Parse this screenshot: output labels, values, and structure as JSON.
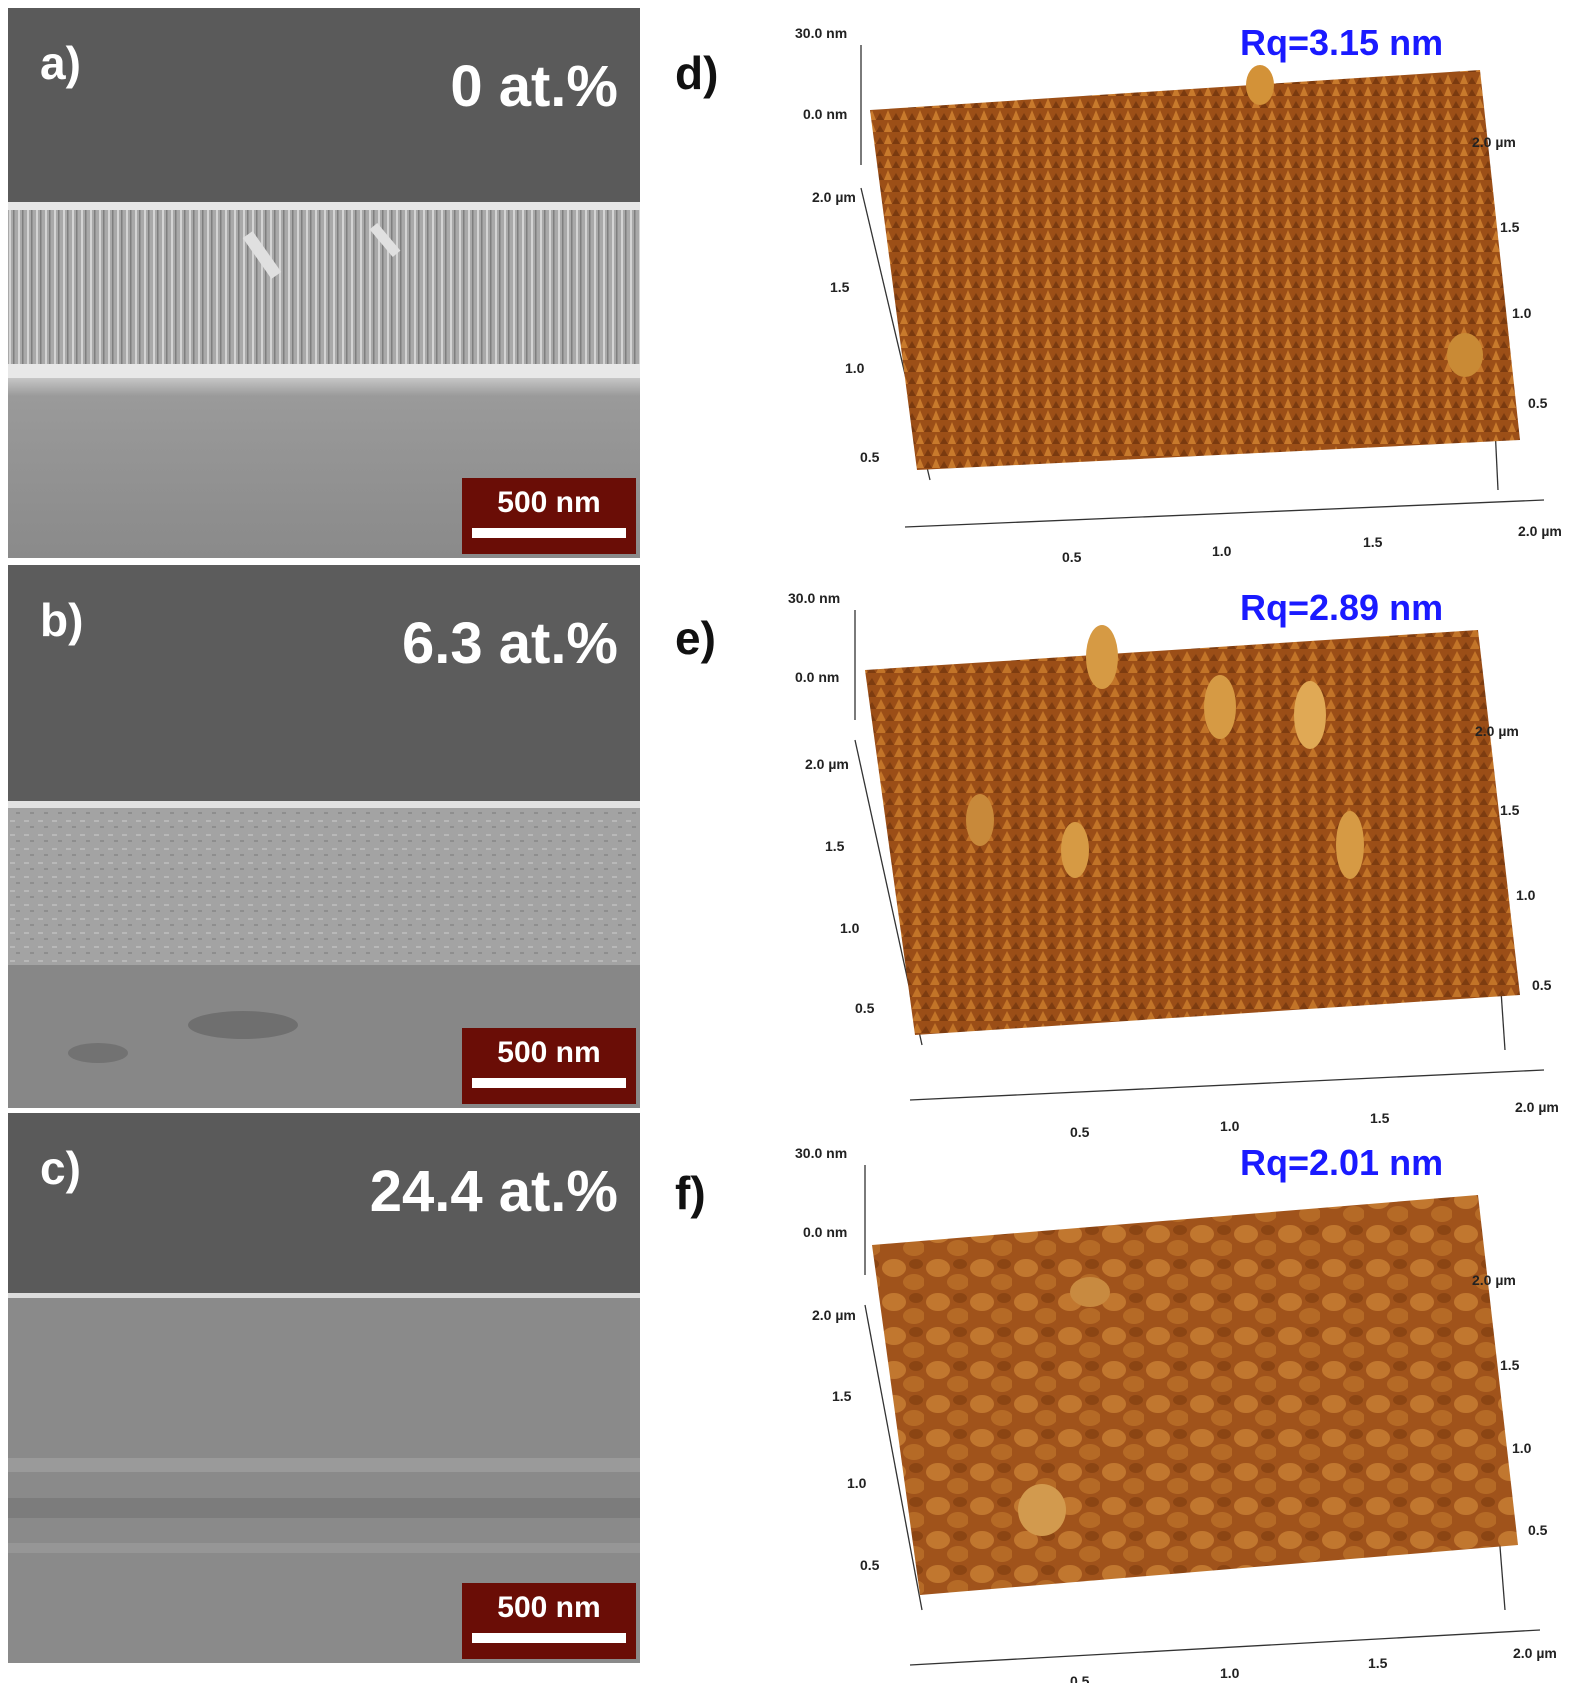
{
  "sem_panels": [
    {
      "id": "a",
      "letter": "a)",
      "concentration": "0 at.%",
      "scale_bar": "500 nm"
    },
    {
      "id": "b",
      "letter": "b)",
      "concentration": "6.3 at.%",
      "scale_bar": "500 nm"
    },
    {
      "id": "c",
      "letter": "c)",
      "concentration": "24.4 at.%",
      "scale_bar": "500 nm"
    }
  ],
  "afm_panels": [
    {
      "id": "d",
      "letter": "d)",
      "roughness": "Rq=3.15 nm"
    },
    {
      "id": "e",
      "letter": "e)",
      "roughness": "Rq=2.89 nm"
    },
    {
      "id": "f",
      "letter": "f)",
      "roughness": "Rq=2.01 nm"
    }
  ],
  "afm_axes": {
    "z_top": "30.0 nm",
    "z_zero": "0.0 nm",
    "left_ticks": [
      "2.0 µm",
      "1.5",
      "1.0",
      "0.5"
    ],
    "right_ticks": [
      "2.0 µm",
      "1.5",
      "1.0",
      "0.5"
    ],
    "bottom_ticks": [
      "0.5",
      "1.0",
      "1.5",
      "2.0 µm"
    ]
  },
  "colors": {
    "sem_vacuum": "#5a5a5a",
    "scale_bar_bg": "#6a0d06",
    "afm_surface": "#a0521a",
    "roughness_text": "#1a1aff"
  }
}
